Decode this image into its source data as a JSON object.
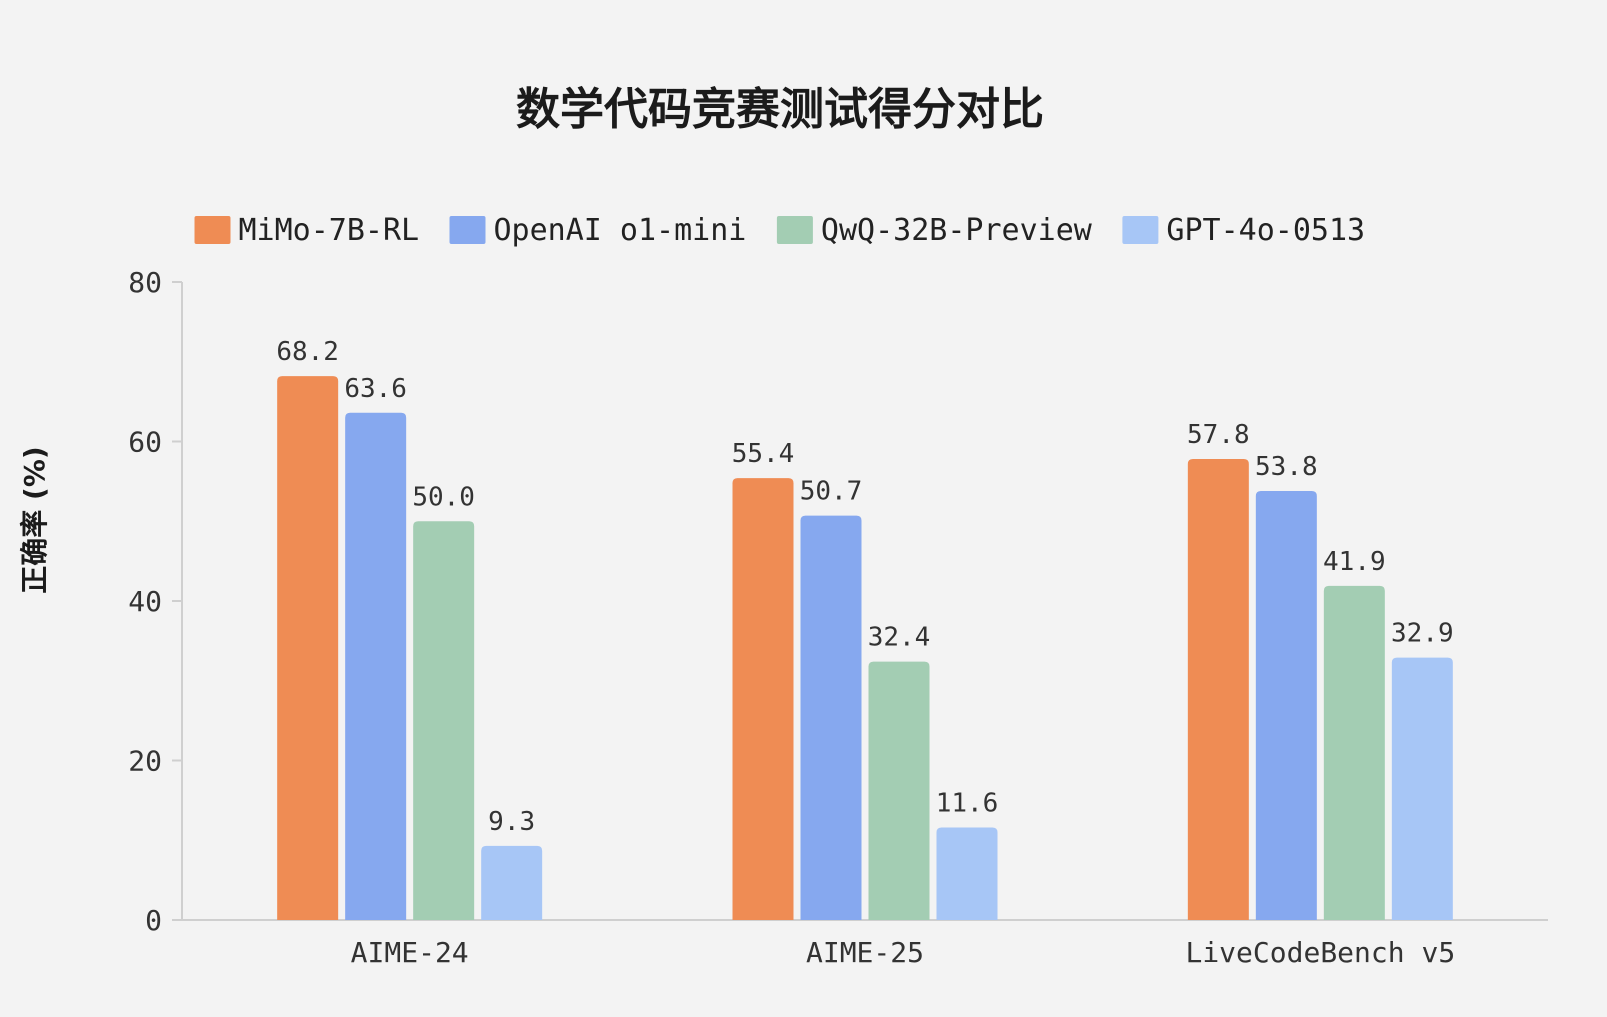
{
  "chart_data": {
    "type": "bar",
    "title": "数学代码竞赛测试得分对比",
    "xlabel": "",
    "ylabel": "正确率 (%)",
    "ylim": [
      0,
      80
    ],
    "yticks": [
      0,
      20,
      40,
      60,
      80
    ],
    "grid": false,
    "legend_position": "top",
    "categories": [
      "AIME-24",
      "AIME-25",
      "LiveCodeBench v5"
    ],
    "series": [
      {
        "name": "MiMo-7B-RL",
        "color": "#ef8c54",
        "values": [
          68.2,
          55.4,
          57.8
        ],
        "labels": [
          "68.2",
          "55.4",
          "57.8"
        ]
      },
      {
        "name": "OpenAI o1-mini",
        "color": "#86a8ef",
        "values": [
          63.6,
          50.7,
          53.8
        ],
        "labels": [
          "63.6",
          "50.7",
          "53.8"
        ]
      },
      {
        "name": "QwQ-32B-Preview",
        "color": "#a3cdb3",
        "values": [
          50.0,
          32.4,
          41.9
        ],
        "labels": [
          "50.0",
          "32.4",
          "41.9"
        ]
      },
      {
        "name": "GPT-4o-0513",
        "color": "#a7c6f6",
        "values": [
          9.3,
          11.6,
          32.9
        ],
        "labels": [
          "9.3",
          "11.6",
          "32.9"
        ]
      }
    ]
  }
}
